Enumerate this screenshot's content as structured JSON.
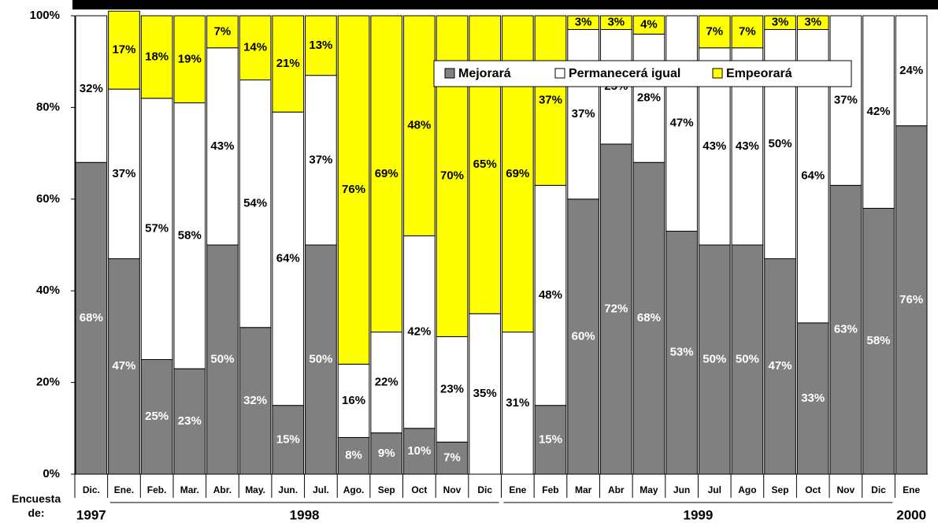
{
  "chart_data": {
    "type": "stacked-bar",
    "x_label": "Encuesta de:",
    "categories": [
      "Dic.",
      "Ene.",
      "Feb.",
      "Mar.",
      "Abr.",
      "May.",
      "Jun.",
      "Jul.",
      "Ago.",
      "Sep",
      "Oct",
      "Nov",
      "Dic",
      "Ene",
      "Feb",
      "Mar",
      "Abr",
      "May",
      "Jun",
      "Jul",
      "Ago",
      "Sep",
      "Oct",
      "Nov",
      "Dic",
      "Ene"
    ],
    "x_groups": [
      "1997",
      "1998",
      "1999",
      "2000"
    ],
    "series": [
      {
        "name": "Mejorará",
        "color": "#808080",
        "label_color": "#ffffff",
        "values": [
          68,
          47,
          25,
          23,
          50,
          32,
          15,
          50,
          8,
          9,
          10,
          7,
          null,
          null,
          15,
          60,
          72,
          68,
          53,
          50,
          50,
          47,
          33,
          63,
          58,
          76
        ],
        "value_labels": [
          "68%",
          "47%",
          "25%",
          "23%",
          "50%",
          "32%",
          "15%",
          "50%",
          "8%",
          "9%",
          "10%",
          "7%",
          null,
          null,
          "15%",
          "60%",
          "72%",
          "68%",
          "53%",
          "50%",
          "50%",
          "47%",
          "33%",
          "63%",
          "58%",
          "76%"
        ]
      },
      {
        "name": "Permanecerá igual",
        "color": "#ffffff",
        "label_color": "#000000",
        "values": [
          32,
          37,
          57,
          58,
          43,
          54,
          64,
          37,
          16,
          22,
          42,
          23,
          35,
          31,
          48,
          37,
          25,
          28,
          47,
          43,
          43,
          50,
          64,
          37,
          42,
          24
        ],
        "value_labels": [
          "32%",
          "37%",
          "57%",
          "58%",
          "43%",
          "54%",
          "64%",
          "37%",
          "16%",
          "22%",
          "42%",
          "23%",
          "35%",
          "31%",
          "48%",
          "37%",
          "25%",
          "28%",
          "47%",
          "43%",
          "43%",
          "50%",
          "64%",
          "37%",
          "42%",
          "24%"
        ]
      },
      {
        "name": "Empeorará",
        "color": "#ffff00",
        "label_color": "#000000",
        "values": [
          null,
          17,
          18,
          19,
          7,
          14,
          21,
          13,
          76,
          69,
          48,
          70,
          65,
          69,
          37,
          3,
          3,
          4,
          null,
          7,
          7,
          3,
          3,
          null,
          null,
          null
        ],
        "value_labels": [
          null,
          "17%",
          "18%",
          "19%",
          "7%",
          "14%",
          "21%",
          "13%",
          "76%",
          "69%",
          "48%",
          "70%",
          "65%",
          "69%",
          "37%",
          "3%",
          "3%",
          "4%",
          null,
          "7%",
          "7%",
          "3%",
          "3%",
          null,
          null,
          null
        ]
      }
    ],
    "ylim": [
      0,
      100
    ],
    "yticks": [
      {
        "value": 0,
        "label": "0%"
      },
      {
        "value": 20,
        "label": "20%"
      },
      {
        "value": 40,
        "label": "40%"
      },
      {
        "value": 60,
        "label": "60%"
      },
      {
        "value": 80,
        "label": "80%"
      },
      {
        "value": 100,
        "label": "100%"
      }
    ],
    "grid": false
  }
}
